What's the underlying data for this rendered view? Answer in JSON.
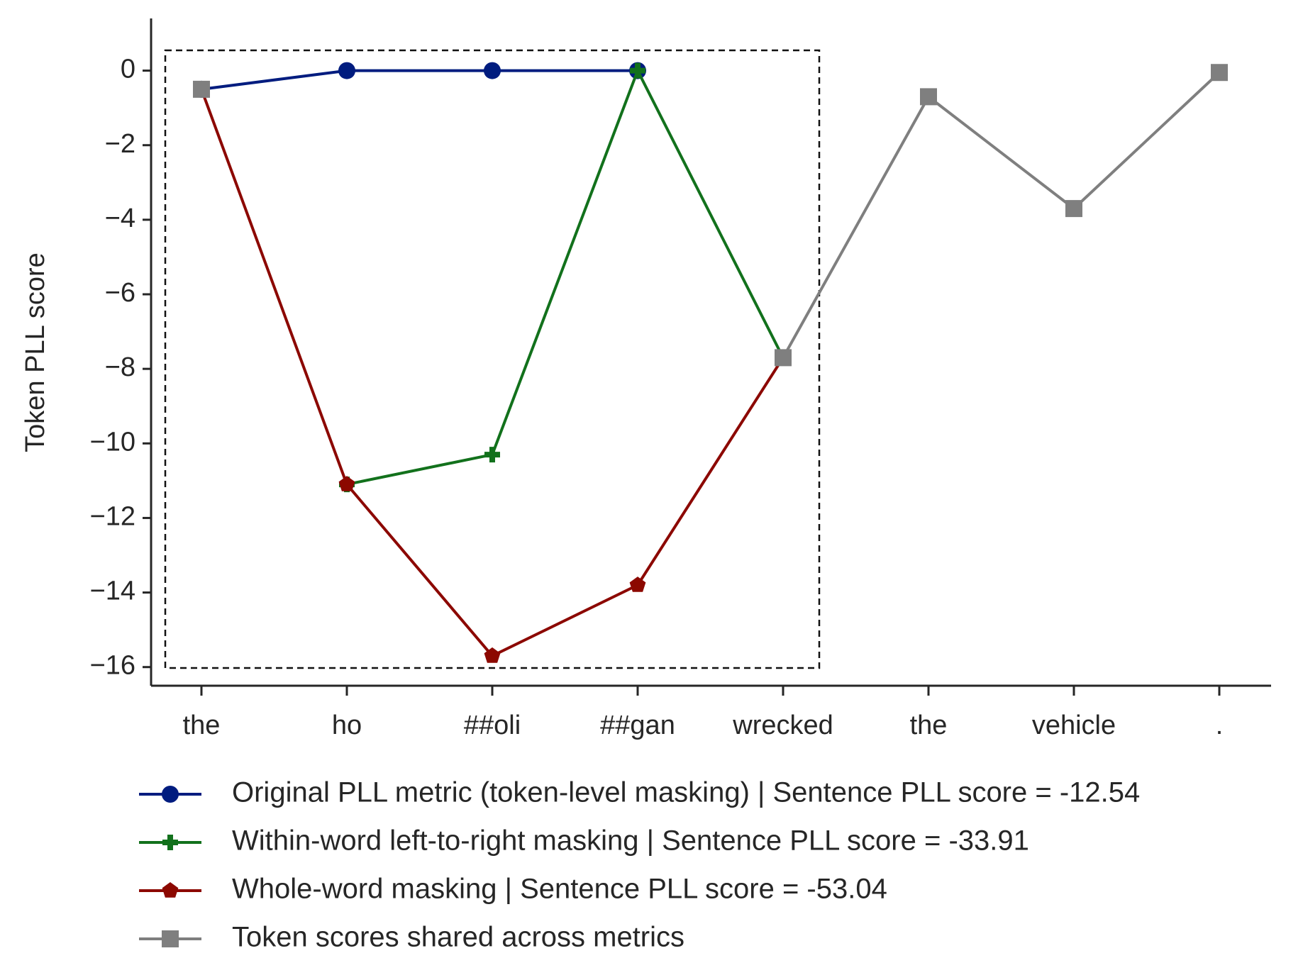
{
  "chart_data": {
    "type": "line",
    "y_label": "Token PLL score",
    "categories": [
      "the",
      "ho",
      "##oli",
      "##gan",
      "wrecked",
      "the",
      "vehicle",
      "."
    ],
    "series": [
      {
        "name": "Original PLL metric (token-level masking) | Sentence PLL score = -12.54",
        "color": "#001c7f",
        "marker": "circle",
        "values": [
          -0.5,
          0,
          0,
          0,
          null,
          null,
          null,
          null
        ]
      },
      {
        "name": "Within-word left-to-right masking | Sentence PLL score = -33.91",
        "color": "#12711c",
        "marker": "plus",
        "values": [
          null,
          -11.1,
          -10.3,
          0,
          -7.7,
          null,
          null,
          null
        ]
      },
      {
        "name": "Whole-word masking | Sentence PLL score = -53.04",
        "color": "#8c0800",
        "marker": "pentagon",
        "values": [
          -0.5,
          -11.1,
          -15.7,
          -13.8,
          -7.7,
          null,
          null,
          null
        ]
      },
      {
        "name": "Token scores shared across metrics",
        "color": "#7f7f7f",
        "marker": "square",
        "values": [
          -0.5,
          null,
          null,
          null,
          -7.7,
          -0.7,
          -3.7,
          -0.05
        ]
      }
    ],
    "ylim": [
      -16.5,
      1.4
    ],
    "yticks": [
      0,
      {
        "value": -2,
        "label": "−2"
      },
      {
        "value": -4,
        "label": "−4"
      },
      {
        "value": -6,
        "label": "−6"
      },
      {
        "value": -8,
        "label": "−8"
      },
      {
        "value": -10,
        "label": "−10"
      },
      {
        "value": -12,
        "label": "−12"
      },
      {
        "value": -14,
        "label": "−14"
      },
      {
        "value": -16,
        "label": "−16"
      }
    ],
    "legend": "below"
  }
}
